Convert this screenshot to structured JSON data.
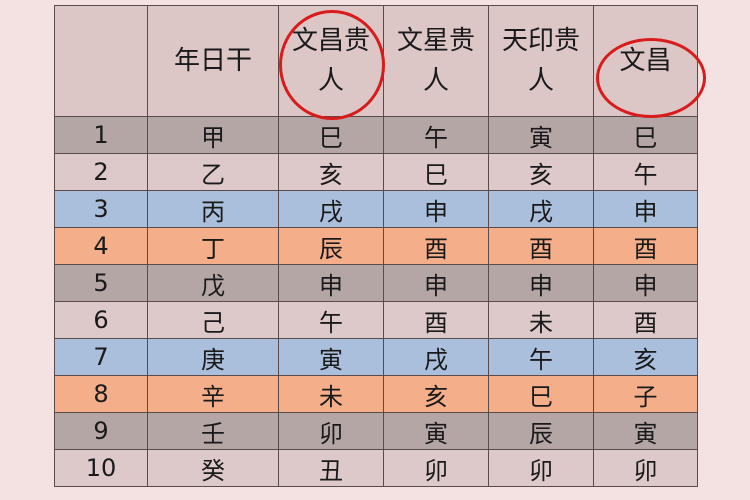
{
  "table": {
    "headers": [
      "",
      "年日干",
      "文昌贵人",
      "文星贵人",
      "天印贵人",
      "文昌"
    ],
    "highlighted_headers": [
      "文昌贵人",
      "文昌"
    ],
    "highlight_color": "#d81c1c",
    "rows": [
      {
        "style": "gray",
        "cells": [
          "1",
          "甲",
          "巳",
          "午",
          "寅",
          "巳"
        ]
      },
      {
        "style": "light",
        "cells": [
          "2",
          "乙",
          "亥",
          "巳",
          "亥",
          "午"
        ]
      },
      {
        "style": "blue",
        "cells": [
          "3",
          "丙",
          "戌",
          "申",
          "戌",
          "申"
        ]
      },
      {
        "style": "orange",
        "cells": [
          "4",
          "丁",
          "辰",
          "酉",
          "酉",
          "酉"
        ]
      },
      {
        "style": "gray",
        "cells": [
          "5",
          "戊",
          "申",
          "申",
          "申",
          "申"
        ]
      },
      {
        "style": "light",
        "cells": [
          "6",
          "己",
          "午",
          "酉",
          "未",
          "酉"
        ]
      },
      {
        "style": "blue",
        "cells": [
          "7",
          "庚",
          "寅",
          "戌",
          "午",
          "亥"
        ]
      },
      {
        "style": "orange",
        "cells": [
          "8",
          "辛",
          "未",
          "亥",
          "巳",
          "子"
        ]
      },
      {
        "style": "gray",
        "cells": [
          "9",
          "壬",
          "卯",
          "寅",
          "辰",
          "寅"
        ]
      },
      {
        "style": "light",
        "cells": [
          "10",
          "癸",
          "丑",
          "卯",
          "卯",
          "卯"
        ]
      }
    ],
    "row_colors": {
      "gray": "#b5a6a6",
      "light": "#ddc9c9",
      "blue": "#a9bfdb",
      "orange": "#f5ae8a"
    }
  }
}
